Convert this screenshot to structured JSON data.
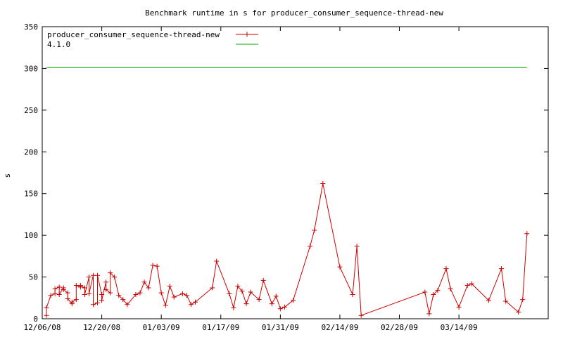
{
  "chart_data": {
    "type": "line",
    "title": "Benchmark runtime in s for producer_consumer_sequence-thread-new",
    "xlabel": "",
    "ylabel": "s",
    "ylim": [
      0,
      350
    ],
    "y_ticks": [
      "0",
      "50",
      "100",
      "150",
      "200",
      "250",
      "300",
      "350"
    ],
    "x_ticks": [
      "12/06/08",
      "12/20/08",
      "01/03/09",
      "01/17/09",
      "01/31/09",
      "02/14/09",
      "02/28/09",
      "03/14/09"
    ],
    "xlim": [
      "2008-12-06",
      "2009-04-04"
    ],
    "grid": false,
    "legend_position": "top-left",
    "series": [
      {
        "name": "producer_consumer_sequence-thread-new",
        "color": "#cc0000",
        "marker": "plus",
        "points": [
          [
            "2008-12-07",
            4
          ],
          [
            "2008-12-07",
            13
          ],
          [
            "2008-12-08",
            28
          ],
          [
            "2008-12-09",
            30
          ],
          [
            "2008-12-09",
            36
          ],
          [
            "2008-12-10",
            38
          ],
          [
            "2008-12-10",
            29
          ],
          [
            "2008-12-11",
            37
          ],
          [
            "2008-12-11",
            35
          ],
          [
            "2008-12-12",
            31
          ],
          [
            "2008-12-12",
            24
          ],
          [
            "2008-12-13",
            18
          ],
          [
            "2008-12-13",
            20
          ],
          [
            "2008-12-14",
            23
          ],
          [
            "2008-12-14",
            40
          ],
          [
            "2008-12-15",
            38
          ],
          [
            "2008-12-15",
            40
          ],
          [
            "2008-12-16",
            37
          ],
          [
            "2008-12-16",
            29
          ],
          [
            "2008-12-17",
            50
          ],
          [
            "2008-12-17",
            30
          ],
          [
            "2008-12-18",
            52
          ],
          [
            "2008-12-18",
            17
          ],
          [
            "2008-12-19",
            19
          ],
          [
            "2008-12-19",
            52
          ],
          [
            "2008-12-20",
            29
          ],
          [
            "2008-12-20",
            22
          ],
          [
            "2008-12-21",
            44
          ],
          [
            "2008-12-21",
            35
          ],
          [
            "2008-12-22",
            31
          ],
          [
            "2008-12-22",
            55
          ],
          [
            "2008-12-23",
            50
          ],
          [
            "2008-12-24",
            28
          ],
          [
            "2008-12-25",
            23
          ],
          [
            "2008-12-26",
            17
          ],
          [
            "2008-12-28",
            29
          ],
          [
            "2008-12-29",
            31
          ],
          [
            "2008-12-30",
            44
          ],
          [
            "2008-12-31",
            37
          ],
          [
            "2009-01-01",
            64
          ],
          [
            "2009-01-02",
            63
          ],
          [
            "2009-01-03",
            31
          ],
          [
            "2009-01-04",
            16
          ],
          [
            "2009-01-05",
            39
          ],
          [
            "2009-01-06",
            26
          ],
          [
            "2009-01-08",
            30
          ],
          [
            "2009-01-09",
            28
          ],
          [
            "2009-01-10",
            17
          ],
          [
            "2009-01-11",
            20
          ],
          [
            "2009-01-15",
            37
          ],
          [
            "2009-01-16",
            69
          ],
          [
            "2009-01-19",
            30
          ],
          [
            "2009-01-20",
            13
          ],
          [
            "2009-01-21",
            39
          ],
          [
            "2009-01-22",
            33
          ],
          [
            "2009-01-23",
            18
          ],
          [
            "2009-01-24",
            32
          ],
          [
            "2009-01-26",
            23
          ],
          [
            "2009-01-27",
            46
          ],
          [
            "2009-01-29",
            18
          ],
          [
            "2009-01-30",
            27
          ],
          [
            "2009-01-31",
            12
          ],
          [
            "2009-02-01",
            14
          ],
          [
            "2009-02-03",
            22
          ],
          [
            "2009-02-07",
            87
          ],
          [
            "2009-02-08",
            106
          ],
          [
            "2009-02-10",
            162
          ],
          [
            "2009-02-14",
            62
          ],
          [
            "2009-02-17",
            29
          ],
          [
            "2009-02-18",
            87
          ],
          [
            "2009-02-19",
            4
          ],
          [
            "2009-03-06",
            32
          ],
          [
            "2009-03-07",
            6
          ],
          [
            "2009-03-08",
            29
          ],
          [
            "2009-03-09",
            34
          ],
          [
            "2009-03-11",
            60
          ],
          [
            "2009-03-12",
            36
          ],
          [
            "2009-03-14",
            14
          ],
          [
            "2009-03-16",
            40
          ],
          [
            "2009-03-17",
            42
          ],
          [
            "2009-03-21",
            22
          ],
          [
            "2009-03-24",
            60
          ],
          [
            "2009-03-25",
            21
          ],
          [
            "2009-03-28",
            8
          ],
          [
            "2009-03-29",
            23
          ],
          [
            "2009-03-30",
            102
          ]
        ]
      },
      {
        "name": "4.1.0",
        "color": "#00aa00",
        "marker": "none",
        "points": [
          [
            "2008-12-07",
            301
          ],
          [
            "2009-03-30",
            301
          ]
        ]
      }
    ]
  }
}
